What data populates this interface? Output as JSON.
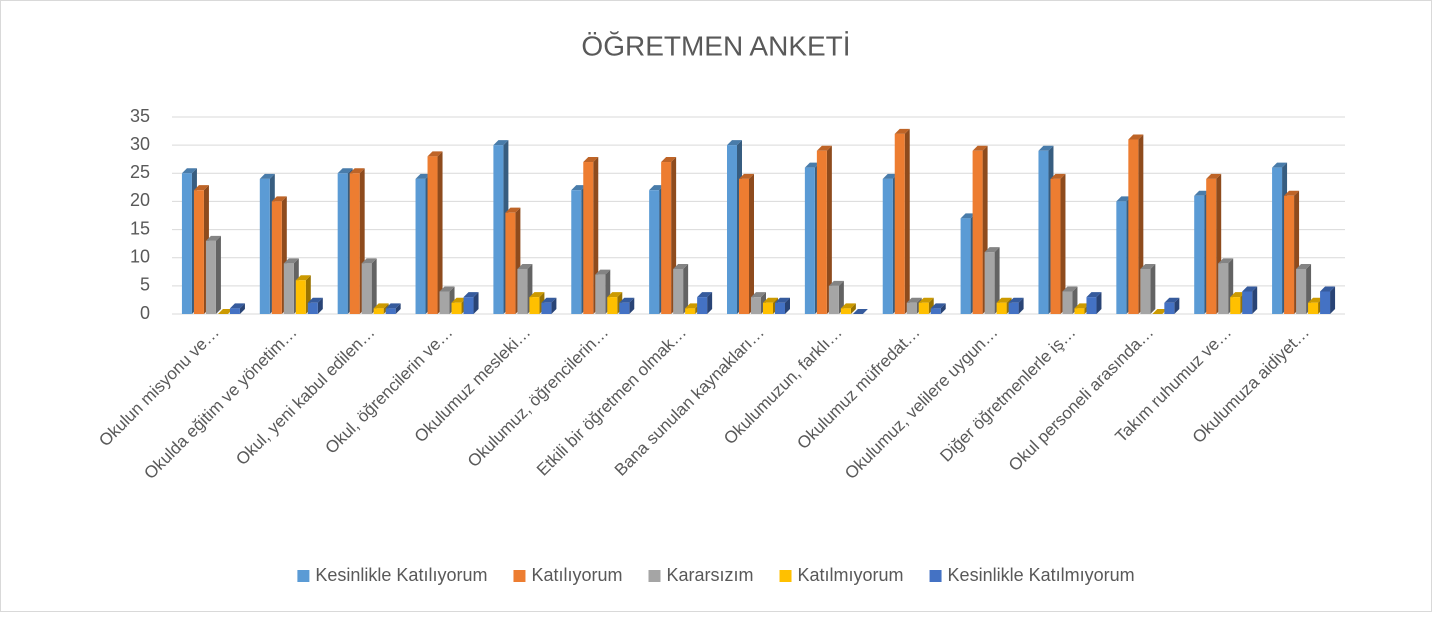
{
  "chart_data": {
    "type": "bar3d",
    "title": "ÖĞRETMEN ANKETİ",
    "categories": [
      "Okulun misyonu ve…",
      "Okulda eğitim ve yönetim…",
      "Okul, yeni kabul edilen…",
      "Okul, öğrencilerin ve…",
      "Okulumuz mesleki…",
      "Okulumuz, öğrencilerin…",
      "Etkili bir öğretmen olmak…",
      "Bana sunulan kaynakları…",
      "Okulumuzun, farklı…",
      "Okulumuz müfredat…",
      "Okulumuz, velilere uygun…",
      "Diğer öğretmenlerle iş…",
      "Okul personeli arasında…",
      "Takım ruhumuz ve…",
      "Okulumuza aidiyet…"
    ],
    "series": [
      {
        "name": "Kesinlikle Katılıyorum",
        "color": "#5b9bd5",
        "values": [
          25,
          24,
          25,
          24,
          30,
          22,
          22,
          30,
          26,
          24,
          17,
          29,
          20,
          21,
          26
        ]
      },
      {
        "name": "Katılıyorum",
        "color": "#ed7d31",
        "values": [
          22,
          20,
          25,
          28,
          18,
          27,
          27,
          24,
          29,
          32,
          29,
          24,
          31,
          24,
          21
        ]
      },
      {
        "name": "Kararsızım",
        "color": "#a5a5a5",
        "values": [
          13,
          9,
          9,
          4,
          8,
          7,
          8,
          3,
          5,
          2,
          11,
          4,
          8,
          9,
          8
        ]
      },
      {
        "name": "Katılmıyorum",
        "color": "#ffc000",
        "values": [
          0,
          6,
          1,
          2,
          3,
          3,
          1,
          2,
          1,
          2,
          2,
          1,
          0,
          3,
          2
        ]
      },
      {
        "name": "Kesinlikle Katılmıyorum",
        "color": "#4472c4",
        "values": [
          1,
          2,
          1,
          3,
          2,
          2,
          3,
          2,
          0,
          1,
          2,
          3,
          2,
          4,
          4
        ]
      }
    ],
    "ylim": [
      0,
      35
    ],
    "yticks": [
      0,
      5,
      10,
      15,
      20,
      25,
      30,
      35
    ],
    "grid": true,
    "legend": "bottom"
  }
}
